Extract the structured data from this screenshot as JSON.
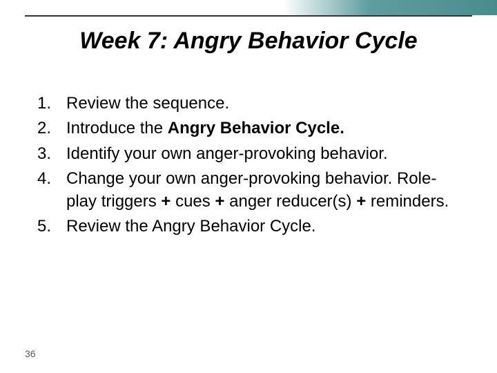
{
  "slide": {
    "title": "Week 7: Angry Behavior Cycle",
    "page_number": "36",
    "top_bar": {
      "line_color": "#333333",
      "gradient_start": "#ffffff",
      "gradient_end": "#4a8b8d"
    },
    "typography": {
      "title_fontsize": 34,
      "body_fontsize": 24,
      "pagenum_fontsize": 14,
      "font_family": "Arial"
    },
    "items": [
      {
        "num": "1.",
        "parts": [
          {
            "text": "Review the sequence.",
            "bold": false
          }
        ]
      },
      {
        "num": "2.",
        "parts": [
          {
            "text": "Introduce the ",
            "bold": false
          },
          {
            "text": "Angry Behavior Cycle.",
            "bold": true
          }
        ]
      },
      {
        "num": "3.",
        "parts": [
          {
            "text": "Identify your own anger-provoking behavior.",
            "bold": false
          }
        ]
      },
      {
        "num": "4.",
        "parts": [
          {
            "text": "Change your own anger-provoking behavior. Role-play triggers ",
            "bold": false
          },
          {
            "text": "+",
            "bold": true
          },
          {
            "text": " cues ",
            "bold": false
          },
          {
            "text": "+",
            "bold": true
          },
          {
            "text": " anger reducer(s) ",
            "bold": false
          },
          {
            "text": "+",
            "bold": true
          },
          {
            "text": " reminders.",
            "bold": false
          }
        ]
      },
      {
        "num": "5.",
        "parts": [
          {
            "text": "Review the Angry Behavior Cycle.",
            "bold": false
          }
        ]
      }
    ]
  }
}
